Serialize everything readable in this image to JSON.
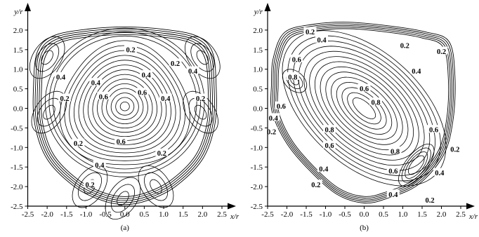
{
  "chart_data": [
    {
      "type": "contour",
      "caption": "(a)",
      "xlabel": "x/r",
      "ylabel": "y/r",
      "xlim": [
        -2.5,
        2.5
      ],
      "ylim": [
        -2.5,
        2.5
      ],
      "xticks": [
        "-2.5",
        "-2.0",
        "-1.5",
        "-1.0",
        "-0.5",
        "0.0",
        "0.5",
        "1.0",
        "1.5",
        "2.0",
        "2.5"
      ],
      "yticks": [
        "-2.5",
        "-2.0",
        "-1.5",
        "-1.0",
        "-0.5",
        "0.0",
        "0.5",
        "1.0",
        "1.5",
        "2.0"
      ],
      "contour_labels": [
        {
          "text": "0.2",
          "x": 0.15,
          "y": 1.5
        },
        {
          "text": "0.2",
          "x": 1.3,
          "y": 1.15
        },
        {
          "text": "0.4",
          "x": -1.65,
          "y": 0.8
        },
        {
          "text": "0.2",
          "x": -1.55,
          "y": 0.25
        },
        {
          "text": "0.4",
          "x": -0.75,
          "y": 0.65
        },
        {
          "text": "0.4",
          "x": 0.55,
          "y": 0.85
        },
        {
          "text": "0.6",
          "x": -0.55,
          "y": 0.3
        },
        {
          "text": "0.6",
          "x": 0.45,
          "y": 0.4
        },
        {
          "text": "0.4",
          "x": 1.05,
          "y": 0.25
        },
        {
          "text": "0.2",
          "x": 1.95,
          "y": 0.25
        },
        {
          "text": "0.4",
          "x": 1.75,
          "y": 0.95
        },
        {
          "text": "0.2",
          "x": -1.2,
          "y": -0.9
        },
        {
          "text": "0.6",
          "x": -0.1,
          "y": -0.85
        },
        {
          "text": "0.4",
          "x": -0.65,
          "y": -1.45
        },
        {
          "text": "0.2",
          "x": 0.95,
          "y": -1.15
        },
        {
          "text": "0.2",
          "x": -0.9,
          "y": -1.95
        }
      ]
    },
    {
      "type": "contour",
      "caption": "(b)",
      "xlabel": "x/r",
      "ylabel": "y/r",
      "xlim": [
        -2.5,
        2.5
      ],
      "ylim": [
        -2.5,
        2.5
      ],
      "xticks": [
        "-2.5",
        "-2.0",
        "-1.5",
        "-1.0",
        "-0.5",
        "0.0",
        "0.5",
        "1.0",
        "1.5",
        "2.0",
        "2.5"
      ],
      "yticks": [
        "-2.5",
        "-2.0",
        "-1.5",
        "-1.0",
        "-0.5",
        "0.0",
        "0.5",
        "1.0",
        "1.5",
        "2.0"
      ],
      "contour_labels": [
        {
          "text": "0.2",
          "x": -1.4,
          "y": 1.95
        },
        {
          "text": "0.4",
          "x": -1.1,
          "y": 1.75
        },
        {
          "text": "0.2",
          "x": 1.05,
          "y": 1.6
        },
        {
          "text": "0.2",
          "x": 2.0,
          "y": 1.45
        },
        {
          "text": "0.6",
          "x": -1.75,
          "y": 1.25
        },
        {
          "text": "0.4",
          "x": 1.35,
          "y": 0.95
        },
        {
          "text": "0.8",
          "x": -1.85,
          "y": 0.8
        },
        {
          "text": "0.6",
          "x": 0.0,
          "y": 0.5
        },
        {
          "text": "0.8",
          "x": 0.3,
          "y": 0.15
        },
        {
          "text": "0.6",
          "x": -2.15,
          "y": 0.05
        },
        {
          "text": "0.4",
          "x": -2.35,
          "y": -0.25
        },
        {
          "text": "0.2",
          "x": -2.4,
          "y": -0.6
        },
        {
          "text": "0.8",
          "x": -0.9,
          "y": -0.55
        },
        {
          "text": "0.6",
          "x": 1.8,
          "y": -0.55
        },
        {
          "text": "0.6",
          "x": -0.9,
          "y": -0.95
        },
        {
          "text": "0.8",
          "x": 0.8,
          "y": -1.1
        },
        {
          "text": "0.4",
          "x": -1.05,
          "y": -1.55
        },
        {
          "text": "0.6",
          "x": 0.75,
          "y": -1.6
        },
        {
          "text": "0.2",
          "x": -1.25,
          "y": -1.95
        },
        {
          "text": "0.4",
          "x": 0.75,
          "y": -2.2
        },
        {
          "text": "0.4",
          "x": 1.95,
          "y": -1.65
        },
        {
          "text": "0.2",
          "x": 1.7,
          "y": -2.35
        },
        {
          "text": "0.2",
          "x": 2.35,
          "y": -1.05
        }
      ]
    }
  ]
}
